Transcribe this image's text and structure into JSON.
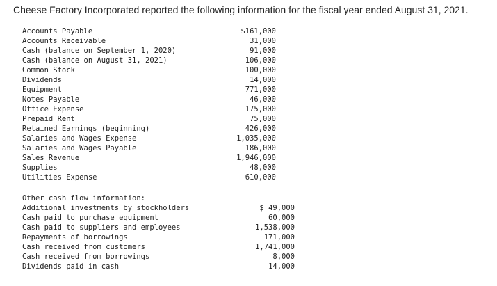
{
  "heading": "Cheese Factory Incorporated reported the following information for the fiscal year ended August 31, 2021.",
  "accounts": [
    {
      "label": "Accounts Payable",
      "amount": "$161,000"
    },
    {
      "label": "Accounts Receivable",
      "amount": "31,000"
    },
    {
      "label": "Cash (balance on September 1, 2020)",
      "amount": "91,000"
    },
    {
      "label": "Cash (balance on August 31, 2021)",
      "amount": "106,000"
    },
    {
      "label": "Common Stock",
      "amount": "100,000"
    },
    {
      "label": "Dividends",
      "amount": "14,000"
    },
    {
      "label": "Equipment",
      "amount": "771,000"
    },
    {
      "label": "Notes Payable",
      "amount": "46,000"
    },
    {
      "label": "Office Expense",
      "amount": "175,000"
    },
    {
      "label": "Prepaid Rent",
      "amount": "75,000"
    },
    {
      "label": "Retained Earnings (beginning)",
      "amount": "426,000"
    },
    {
      "label": "Salaries and Wages Expense",
      "amount": "1,035,000"
    },
    {
      "label": "Salaries and Wages Payable",
      "amount": "186,000"
    },
    {
      "label": "Sales Revenue",
      "amount": "1,946,000"
    },
    {
      "label": "Supplies",
      "amount": "48,000"
    },
    {
      "label": "Utilities Expense",
      "amount": "610,000"
    }
  ],
  "cash_flow": {
    "title": "Other cash flow information:",
    "items": [
      {
        "label": "Additional investments by stockholders",
        "amount": "$ 49,000"
      },
      {
        "label": "Cash paid to purchase equipment",
        "amount": "60,000"
      },
      {
        "label": "Cash paid to suppliers and employees",
        "amount": "1,538,000"
      },
      {
        "label": "Repayments of borrowings",
        "amount": "171,000"
      },
      {
        "label": "Cash received from customers",
        "amount": "1,741,000"
      },
      {
        "label": "Cash received from borrowings",
        "amount": "8,000"
      },
      {
        "label": "Dividends paid in cash",
        "amount": "14,000"
      }
    ]
  }
}
